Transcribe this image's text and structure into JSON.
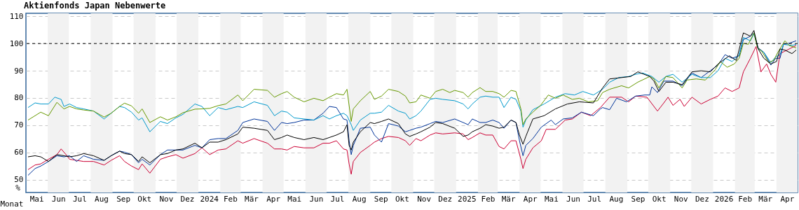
{
  "chart_data": {
    "type": "line",
    "title": "Aktienfonds Japan Nebenwerte",
    "xlabel": "Monat",
    "ylabel": "%",
    "xlim": [
      "2023-05-01",
      "2026-05-01"
    ],
    "ylim": [
      45.3,
      111.1
    ],
    "yticks": [
      50,
      60,
      70,
      80,
      90,
      100,
      110
    ],
    "xticks": [
      {
        "value": "2023-05-16",
        "label": "Mai"
      },
      {
        "value": "2023-06-16",
        "label": "Jun"
      },
      {
        "value": "2023-07-16",
        "label": "Jul"
      },
      {
        "value": "2023-08-16",
        "label": "Aug"
      },
      {
        "value": "2023-09-16",
        "label": "Sep"
      },
      {
        "value": "2023-10-16",
        "label": "Okt"
      },
      {
        "value": "2023-11-16",
        "label": "Nov"
      },
      {
        "value": "2023-12-16",
        "label": "Dez"
      },
      {
        "value": "2024-01-16",
        "label": "2024"
      },
      {
        "value": "2024-02-15",
        "label": "Feb"
      },
      {
        "value": "2024-03-16",
        "label": "Mär"
      },
      {
        "value": "2024-04-16",
        "label": "Apr"
      },
      {
        "value": "2024-05-16",
        "label": "Mai"
      },
      {
        "value": "2024-06-16",
        "label": "Jun"
      },
      {
        "value": "2024-07-16",
        "label": "Jul"
      },
      {
        "value": "2024-08-16",
        "label": "Aug"
      },
      {
        "value": "2024-09-16",
        "label": "Sep"
      },
      {
        "value": "2024-10-16",
        "label": "Okt"
      },
      {
        "value": "2024-11-16",
        "label": "Nov"
      },
      {
        "value": "2024-12-16",
        "label": "Dez"
      },
      {
        "value": "2025-01-16",
        "label": "2025"
      },
      {
        "value": "2025-02-15",
        "label": "Feb"
      },
      {
        "value": "2025-03-16",
        "label": "Mär"
      },
      {
        "value": "2025-04-16",
        "label": "Apr"
      },
      {
        "value": "2025-05-16",
        "label": "Mai"
      },
      {
        "value": "2025-06-16",
        "label": "Jun"
      },
      {
        "value": "2025-07-16",
        "label": "Jul"
      },
      {
        "value": "2025-08-16",
        "label": "Aug"
      },
      {
        "value": "2025-09-16",
        "label": "Sep"
      },
      {
        "value": "2025-10-16",
        "label": "Okt"
      },
      {
        "value": "2025-11-16",
        "label": "Nov"
      },
      {
        "value": "2025-12-16",
        "label": "Dez"
      },
      {
        "value": "2026-01-16",
        "label": "2026"
      },
      {
        "value": "2026-02-15",
        "label": "Feb"
      },
      {
        "value": "2026-03-16",
        "label": "Mär"
      },
      {
        "value": "2026-04-16",
        "label": "Apr"
      }
    ],
    "grid": "y",
    "ref_lines": [
      {
        "axis": "y",
        "value": 100,
        "color": "#000000",
        "line_style": "dashed"
      }
    ],
    "bands": [
      {
        "axis": "x",
        "from": "2023-06-01",
        "to": "2023-07-01",
        "color": "#f2f2f2"
      },
      {
        "axis": "x",
        "from": "2023-08-01",
        "to": "2023-09-01",
        "color": "#f2f2f2"
      },
      {
        "axis": "x",
        "from": "2023-10-01",
        "to": "2023-11-01",
        "color": "#f2f2f2"
      },
      {
        "axis": "x",
        "from": "2023-12-01",
        "to": "2024-01-01",
        "color": "#f2f2f2"
      },
      {
        "axis": "x",
        "from": "2024-02-01",
        "to": "2024-03-01",
        "color": "#f2f2f2"
      },
      {
        "axis": "x",
        "from": "2024-04-01",
        "to": "2024-05-01",
        "color": "#f2f2f2"
      },
      {
        "axis": "x",
        "from": "2024-06-01",
        "to": "2024-07-01",
        "color": "#f2f2f2"
      },
      {
        "axis": "x",
        "from": "2024-08-01",
        "to": "2024-09-01",
        "color": "#f2f2f2"
      },
      {
        "axis": "x",
        "from": "2024-10-01",
        "to": "2024-11-01",
        "color": "#f2f2f2"
      },
      {
        "axis": "x",
        "from": "2024-12-01",
        "to": "2025-01-01",
        "color": "#f2f2f2"
      },
      {
        "axis": "x",
        "from": "2025-02-01",
        "to": "2025-03-01",
        "color": "#f2f2f2"
      },
      {
        "axis": "x",
        "from": "2025-04-01",
        "to": "2025-05-01",
        "color": "#f2f2f2"
      },
      {
        "axis": "x",
        "from": "2025-06-01",
        "to": "2025-07-01",
        "color": "#f2f2f2"
      },
      {
        "axis": "x",
        "from": "2025-08-01",
        "to": "2025-09-01",
        "color": "#f2f2f2"
      },
      {
        "axis": "x",
        "from": "2025-10-01",
        "to": "2025-11-01",
        "color": "#f2f2f2"
      },
      {
        "axis": "x",
        "from": "2025-12-01",
        "to": "2026-01-01",
        "color": "#f2f2f2"
      },
      {
        "axis": "x",
        "from": "2026-02-01",
        "to": "2026-03-01",
        "color": "#f2f2f2"
      },
      {
        "axis": "x",
        "from": "2026-04-01",
        "to": "2026-05-01",
        "color": "#f2f2f2"
      }
    ],
    "series": [
      {
        "color": "#cc0033",
        "x": [
          "2023-05-04",
          "2023-05-14",
          "2023-05-22",
          "2023-06-02",
          "2023-06-14",
          "2023-06-20",
          "2023-06-27",
          "2023-07-02",
          "2023-07-12",
          "2023-07-22",
          "2023-08-05",
          "2023-08-20",
          "2023-08-30",
          "2023-09-11",
          "2023-09-18",
          "2023-09-28",
          "2023-10-08",
          "2023-10-13",
          "2023-10-24",
          "2023-11-08",
          "2023-11-18",
          "2023-11-30",
          "2023-12-10",
          "2023-12-27",
          "2024-01-06",
          "2024-01-17",
          "2024-01-29",
          "2024-02-09",
          "2024-02-26",
          "2024-03-04",
          "2024-03-20",
          "2024-04-08",
          "2024-04-18",
          "2024-04-28",
          "2024-05-06",
          "2024-05-16",
          "2024-05-30",
          "2024-06-13",
          "2024-06-26",
          "2024-07-05",
          "2024-07-15",
          "2024-07-25",
          "2024-07-30",
          "2024-08-02",
          "2024-08-05",
          "2024-08-08",
          "2024-08-18",
          "2024-09-01",
          "2024-09-07",
          "2024-09-17",
          "2024-09-27",
          "2024-10-11",
          "2024-10-21",
          "2024-10-27",
          "2024-11-05",
          "2024-11-12",
          "2024-11-25",
          "2024-12-03",
          "2024-12-13",
          "2024-12-30",
          "2025-01-11",
          "2025-01-18",
          "2025-01-24",
          "2025-02-04",
          "2025-02-12",
          "2025-02-22",
          "2025-03-03",
          "2025-03-10",
          "2025-03-20",
          "2025-03-27",
          "2025-04-03",
          "2025-04-06",
          "2025-04-10",
          "2025-04-20",
          "2025-05-02",
          "2025-05-09",
          "2025-05-22",
          "2025-06-05",
          "2025-06-15",
          "2025-06-28",
          "2025-07-11",
          "2025-07-25",
          "2025-08-07",
          "2025-08-24",
          "2025-09-03",
          "2025-09-13",
          "2025-09-29",
          "2025-10-14",
          "2025-10-23",
          "2025-10-29",
          "2025-11-05",
          "2025-11-15",
          "2025-11-21",
          "2025-12-02",
          "2025-12-15",
          "2025-12-28",
          "2026-01-08",
          "2026-01-18",
          "2026-01-28",
          "2026-02-07",
          "2026-02-13",
          "2026-02-23",
          "2026-03-03",
          "2026-03-10",
          "2026-03-18",
          "2026-03-24",
          "2026-03-31",
          "2026-04-06",
          "2026-04-16",
          "2026-04-29"
        ],
        "values": [
          53.7,
          55.4,
          55.8,
          57.5,
          59.2,
          61.3,
          59.2,
          57.5,
          57.1,
          56.7,
          56.7,
          55.4,
          57.1,
          58.8,
          56.7,
          55,
          53.7,
          55.8,
          52.4,
          57.5,
          58.4,
          59.2,
          57.9,
          59.6,
          61.7,
          59.2,
          60.9,
          61.3,
          64.3,
          63.4,
          65.1,
          63.4,
          61.3,
          61.3,
          60.9,
          62.2,
          61.7,
          61.7,
          63.4,
          63.4,
          64.3,
          61.3,
          60.9,
          55.8,
          52,
          56.7,
          60,
          62.6,
          63.8,
          65.1,
          65.9,
          65.5,
          64.3,
          62.6,
          65.1,
          64.3,
          66.4,
          67.2,
          66.8,
          67.2,
          66.8,
          64.7,
          65.5,
          67.2,
          66.4,
          66.4,
          62.2,
          61.3,
          64.3,
          64.3,
          57.5,
          54.1,
          57.5,
          61.7,
          64.3,
          68.5,
          68.5,
          71.9,
          72.3,
          74.8,
          73.5,
          76.5,
          80.3,
          80.3,
          78.6,
          80.7,
          80.3,
          75.2,
          78.2,
          80.3,
          77.3,
          79.5,
          76.9,
          80.3,
          77.8,
          79.5,
          80.7,
          83.7,
          82.4,
          83.7,
          89.6,
          94.6,
          98.9,
          89.6,
          92.5,
          88.7,
          85.8,
          96.3,
          97.6,
          99.3
        ]
      },
      {
        "color": "#003399",
        "x": [
          "2023-05-04",
          "2023-05-14",
          "2023-05-22",
          "2023-06-02",
          "2023-06-14",
          "2023-06-24",
          "2023-07-02",
          "2023-07-12",
          "2023-07-22",
          "2023-08-05",
          "2023-08-20",
          "2023-08-30",
          "2023-09-11",
          "2023-09-18",
          "2023-09-28",
          "2023-10-08",
          "2023-10-13",
          "2023-10-24",
          "2023-11-08",
          "2023-11-18",
          "2023-11-30",
          "2023-12-10",
          "2023-12-27",
          "2024-01-06",
          "2024-01-17",
          "2024-01-29",
          "2024-02-09",
          "2024-02-26",
          "2024-03-04",
          "2024-03-20",
          "2024-04-08",
          "2024-04-18",
          "2024-04-28",
          "2024-05-06",
          "2024-05-16",
          "2024-05-30",
          "2024-06-13",
          "2024-06-26",
          "2024-07-05",
          "2024-07-15",
          "2024-07-25",
          "2024-07-30",
          "2024-08-02",
          "2024-08-05",
          "2024-08-08",
          "2024-08-18",
          "2024-09-01",
          "2024-09-07",
          "2024-09-17",
          "2024-09-27",
          "2024-10-11",
          "2024-10-21",
          "2024-10-27",
          "2024-11-05",
          "2024-11-12",
          "2024-11-25",
          "2024-12-03",
          "2024-12-13",
          "2024-12-30",
          "2025-01-11",
          "2025-01-18",
          "2025-01-24",
          "2025-02-04",
          "2025-02-12",
          "2025-02-22",
          "2025-03-03",
          "2025-03-10",
          "2025-03-20",
          "2025-03-27",
          "2025-04-01",
          "2025-04-06",
          "2025-04-10",
          "2025-04-20",
          "2025-05-02",
          "2025-05-16",
          "2025-05-22",
          "2025-06-02",
          "2025-06-15",
          "2025-06-28",
          "2025-07-15",
          "2025-07-25",
          "2025-07-28",
          "2025-08-07",
          "2025-08-17",
          "2025-08-31",
          "2025-09-13",
          "2025-09-26",
          "2025-10-03",
          "2025-10-06",
          "2025-10-14",
          "2025-10-23",
          "2025-11-05",
          "2025-11-18",
          "2025-12-02",
          "2025-12-15",
          "2025-12-28",
          "2026-01-08",
          "2026-01-18",
          "2026-01-28",
          "2026-02-07",
          "2026-02-13",
          "2026-02-23",
          "2026-02-28",
          "2026-03-06",
          "2026-03-14",
          "2026-03-24",
          "2026-03-31",
          "2026-04-06",
          "2026-04-11",
          "2026-04-19",
          "2026-04-29"
        ],
        "values": [
          51.6,
          54.1,
          55,
          56.7,
          58.8,
          58.4,
          58.8,
          56.7,
          58.8,
          57.5,
          57.1,
          58.8,
          60.5,
          60.1,
          59.2,
          56.2,
          57.5,
          55.4,
          59.2,
          60.9,
          60.9,
          60.9,
          62.6,
          61.7,
          64.7,
          65.1,
          65.1,
          68.1,
          71,
          72.3,
          71.4,
          68.1,
          71,
          70.6,
          71,
          71.9,
          71.9,
          74.4,
          76.9,
          76.5,
          72.3,
          71.9,
          64.3,
          59.2,
          62.6,
          68.9,
          69.3,
          66.4,
          63.8,
          70.6,
          69.7,
          67.6,
          68.1,
          68.9,
          69.3,
          70.6,
          71.4,
          71,
          72.3,
          71,
          70.2,
          72.3,
          71,
          71,
          71.9,
          71,
          68.9,
          71.9,
          71,
          64.3,
          58.8,
          62.6,
          65.1,
          69.3,
          71.9,
          70.2,
          72.3,
          72.7,
          74.8,
          73.5,
          76,
          76.5,
          75.7,
          79.9,
          78.6,
          80.7,
          81.1,
          81.1,
          84.1,
          82,
          86.2,
          86.2,
          84.5,
          89.2,
          87.5,
          90,
          92.1,
          95.9,
          94.6,
          95.5,
          101.4,
          102.7,
          103.9,
          98.4,
          96.8,
          92.1,
          94.6,
          94.6,
          99.7,
          100.1,
          101
        ]
      },
      {
        "color": "#0099cc",
        "x": [
          "2023-05-04",
          "2023-05-14",
          "2023-05-22",
          "2023-06-02",
          "2023-06-11",
          "2023-06-20",
          "2023-06-24",
          "2023-07-02",
          "2023-07-12",
          "2023-07-22",
          "2023-08-05",
          "2023-08-20",
          "2023-08-30",
          "2023-09-11",
          "2023-09-18",
          "2023-09-28",
          "2023-10-08",
          "2023-10-13",
          "2023-10-24",
          "2023-11-08",
          "2023-11-18",
          "2023-11-30",
          "2023-12-10",
          "2023-12-27",
          "2024-01-06",
          "2024-01-17",
          "2024-01-29",
          "2024-02-09",
          "2024-02-26",
          "2024-03-04",
          "2024-03-20",
          "2024-04-08",
          "2024-04-18",
          "2024-04-28",
          "2024-05-06",
          "2024-05-16",
          "2024-05-30",
          "2024-06-13",
          "2024-06-26",
          "2024-07-05",
          "2024-07-15",
          "2024-07-25",
          "2024-07-30",
          "2024-08-05",
          "2024-08-08",
          "2024-08-18",
          "2024-09-01",
          "2024-09-07",
          "2024-09-17",
          "2024-09-27",
          "2024-10-11",
          "2024-10-21",
          "2024-10-27",
          "2024-11-05",
          "2024-11-12",
          "2024-11-25",
          "2024-12-03",
          "2024-12-13",
          "2024-12-30",
          "2025-01-11",
          "2025-01-18",
          "2025-01-24",
          "2025-02-04",
          "2025-02-12",
          "2025-02-22",
          "2025-03-03",
          "2025-03-10",
          "2025-03-20",
          "2025-03-27",
          "2025-04-03",
          "2025-04-06",
          "2025-04-10",
          "2025-04-20",
          "2025-05-06",
          "2025-05-22",
          "2025-06-05",
          "2025-06-18",
          "2025-06-30",
          "2025-07-15",
          "2025-07-28",
          "2025-08-07",
          "2025-08-20",
          "2025-09-03",
          "2025-09-13",
          "2025-09-23",
          "2025-10-06",
          "2025-10-16",
          "2025-10-26",
          "2025-11-05",
          "2025-11-18",
          "2025-12-02",
          "2025-12-15",
          "2025-12-28",
          "2026-01-08",
          "2026-01-18",
          "2026-01-28",
          "2026-02-07",
          "2026-02-13",
          "2026-02-23",
          "2026-02-28",
          "2026-03-06",
          "2026-03-14",
          "2026-03-24",
          "2026-03-31",
          "2026-04-06",
          "2026-04-11",
          "2026-04-23",
          "2026-04-29"
        ],
        "values": [
          76.5,
          78.2,
          77.8,
          77.8,
          80.3,
          79.5,
          76.9,
          77.8,
          76.5,
          76,
          75.2,
          72.3,
          74.4,
          76.9,
          76.5,
          74.8,
          71.9,
          72.7,
          67.6,
          71.4,
          70.6,
          72.7,
          74,
          77.8,
          76.9,
          73.5,
          76.5,
          75.7,
          76.9,
          76.5,
          78.6,
          77.3,
          73.5,
          75.2,
          74.8,
          72.7,
          72.3,
          71.9,
          73.5,
          72.3,
          73.5,
          74.4,
          73.5,
          70.2,
          68.1,
          71.9,
          74.4,
          74.4,
          74.8,
          77.3,
          75.2,
          74.4,
          72.3,
          73.5,
          75.2,
          79.5,
          79.9,
          79.5,
          79,
          77.8,
          76,
          77.8,
          80.3,
          80.7,
          80.3,
          80.3,
          76.5,
          80.3,
          79.5,
          75.2,
          69.3,
          71.9,
          75.7,
          77.8,
          80.3,
          81.6,
          81.1,
          82.4,
          81.1,
          83.2,
          85.8,
          87.5,
          87.9,
          88.7,
          89.2,
          87.9,
          85.8,
          87.9,
          88.7,
          85.8,
          88.7,
          87.5,
          87.5,
          90,
          94.6,
          93.4,
          95.9,
          102.2,
          101,
          103.5,
          98,
          96.8,
          93,
          95.1,
          95.9,
          99.7,
          99.3,
          99.7
        ]
      },
      {
        "color": "#669900",
        "x": [
          "2023-05-04",
          "2023-05-14",
          "2023-05-22",
          "2023-06-02",
          "2023-06-14",
          "2023-06-24",
          "2023-07-02",
          "2023-07-12",
          "2023-07-22",
          "2023-08-05",
          "2023-08-20",
          "2023-08-30",
          "2023-09-11",
          "2023-09-18",
          "2023-09-28",
          "2023-10-08",
          "2023-10-13",
          "2023-10-24",
          "2023-11-08",
          "2023-11-18",
          "2023-11-30",
          "2023-12-10",
          "2023-12-27",
          "2024-01-06",
          "2024-01-17",
          "2024-01-29",
          "2024-02-09",
          "2024-02-26",
          "2024-03-04",
          "2024-03-20",
          "2024-04-08",
          "2024-04-18",
          "2024-04-28",
          "2024-05-06",
          "2024-05-16",
          "2024-05-30",
          "2024-06-13",
          "2024-06-26",
          "2024-07-05",
          "2024-07-15",
          "2024-07-25",
          "2024-07-30",
          "2024-08-05",
          "2024-08-08",
          "2024-08-18",
          "2024-09-01",
          "2024-09-07",
          "2024-09-17",
          "2024-09-27",
          "2024-10-11",
          "2024-10-21",
          "2024-10-27",
          "2024-11-05",
          "2024-11-12",
          "2024-11-25",
          "2024-12-03",
          "2024-12-13",
          "2024-12-23",
          "2024-12-30",
          "2025-01-11",
          "2025-01-18",
          "2025-01-24",
          "2025-02-04",
          "2025-02-12",
          "2025-02-22",
          "2025-03-03",
          "2025-03-10",
          "2025-03-20",
          "2025-03-27",
          "2025-04-03",
          "2025-04-06",
          "2025-04-10",
          "2025-04-20",
          "2025-05-01",
          "2025-05-12",
          "2025-05-22",
          "2025-06-02",
          "2025-06-15",
          "2025-06-25",
          "2025-07-08",
          "2025-07-21",
          "2025-07-28",
          "2025-08-07",
          "2025-08-24",
          "2025-09-03",
          "2025-09-16",
          "2025-10-03",
          "2025-10-09",
          "2025-10-16",
          "2025-10-26",
          "2025-11-05",
          "2025-11-18",
          "2025-11-25",
          "2025-12-08",
          "2025-12-21",
          "2026-01-04",
          "2026-01-11",
          "2026-01-21",
          "2026-01-31",
          "2026-02-07",
          "2026-02-13",
          "2026-02-20",
          "2026-02-28",
          "2026-03-05",
          "2026-03-11",
          "2026-03-21",
          "2026-03-28",
          "2026-04-03",
          "2026-04-09",
          "2026-04-13",
          "2026-04-19",
          "2026-04-29"
        ],
        "values": [
          71.9,
          73.5,
          74.8,
          73.5,
          78.4,
          76,
          76.9,
          76,
          75.6,
          75.2,
          73,
          74.4,
          76.9,
          78.1,
          77.1,
          74.4,
          76,
          71,
          73.1,
          71.9,
          73.1,
          74.6,
          75.9,
          76,
          76.2,
          77.2,
          77.8,
          81.1,
          79,
          83.2,
          82.8,
          80.3,
          81.6,
          82.4,
          80.3,
          78.6,
          79.9,
          79,
          80.3,
          81.6,
          81.1,
          83.2,
          71.4,
          76,
          79,
          82.4,
          79.5,
          80.7,
          83.2,
          82.4,
          80.7,
          78.2,
          78.6,
          81.1,
          79.9,
          82.4,
          83.2,
          82,
          82.8,
          82,
          80.3,
          82,
          83.8,
          82.4,
          82.4,
          81.6,
          80.3,
          82.8,
          82.4,
          76,
          70.2,
          72.3,
          74.8,
          77.3,
          81.1,
          79.9,
          81.1,
          79.5,
          79.9,
          78.6,
          79,
          82,
          83.2,
          84.5,
          83.7,
          85.8,
          87.9,
          87,
          83.7,
          87.9,
          87.5,
          83.7,
          86.6,
          87,
          86.6,
          90.4,
          93.4,
          91.3,
          92.5,
          94.6,
          100.1,
          99.7,
          103.9,
          98.4,
          97.2,
          93,
          93.8,
          96.8,
          99.3,
          101,
          99.3,
          98.4
        ]
      },
      {
        "color": "#000000",
        "x": [
          "2023-05-04",
          "2023-05-14",
          "2023-05-22",
          "2023-06-02",
          "2023-06-14",
          "2023-06-24",
          "2023-07-02",
          "2023-07-12",
          "2023-07-22",
          "2023-08-05",
          "2023-08-20",
          "2023-08-30",
          "2023-09-11",
          "2023-09-18",
          "2023-09-28",
          "2023-10-08",
          "2023-10-13",
          "2023-10-24",
          "2023-11-08",
          "2023-11-18",
          "2023-11-30",
          "2023-12-10",
          "2023-12-27",
          "2024-01-06",
          "2024-01-17",
          "2024-01-29",
          "2024-02-09",
          "2024-02-26",
          "2024-03-04",
          "2024-03-20",
          "2024-04-08",
          "2024-04-18",
          "2024-04-28",
          "2024-05-06",
          "2024-05-16",
          "2024-05-30",
          "2024-06-13",
          "2024-06-26",
          "2024-07-05",
          "2024-07-15",
          "2024-07-25",
          "2024-07-30",
          "2024-08-02",
          "2024-08-05",
          "2024-08-08",
          "2024-08-18",
          "2024-09-01",
          "2024-09-07",
          "2024-09-17",
          "2024-09-27",
          "2024-10-11",
          "2024-10-21",
          "2024-10-27",
          "2024-11-05",
          "2024-11-12",
          "2024-11-25",
          "2024-12-03",
          "2024-12-13",
          "2024-12-30",
          "2025-01-11",
          "2025-01-18",
          "2025-01-24",
          "2025-02-04",
          "2025-02-12",
          "2025-02-22",
          "2025-03-03",
          "2025-03-10",
          "2025-03-20",
          "2025-03-27",
          "2025-04-01",
          "2025-04-06",
          "2025-04-10",
          "2025-04-20",
          "2025-05-06",
          "2025-05-22",
          "2025-06-08",
          "2025-06-25",
          "2025-07-15",
          "2025-07-28",
          "2025-08-07",
          "2025-08-24",
          "2025-09-06",
          "2025-09-16",
          "2025-10-03",
          "2025-10-09",
          "2025-10-16",
          "2025-10-26",
          "2025-11-05",
          "2025-11-18",
          "2025-12-02",
          "2025-12-15",
          "2025-12-28",
          "2026-01-08",
          "2026-01-24",
          "2026-02-03",
          "2026-02-13",
          "2026-02-23",
          "2026-02-28",
          "2026-03-06",
          "2026-03-14",
          "2026-03-24",
          "2026-04-01",
          "2026-04-06",
          "2026-04-13",
          "2026-04-23",
          "2026-04-29"
        ],
        "values": [
          58.4,
          58.8,
          58.4,
          56.7,
          59.2,
          58.8,
          58.4,
          58.8,
          59.6,
          58.8,
          57.1,
          58.8,
          60.5,
          59.6,
          59.2,
          56.7,
          58.4,
          56.2,
          59.2,
          59.6,
          60.9,
          61.3,
          63.4,
          61.7,
          63.8,
          63.8,
          64.7,
          66.8,
          69.3,
          68.9,
          68.1,
          64.7,
          65.5,
          66.4,
          65.5,
          64.7,
          65.5,
          64.7,
          65.5,
          66.4,
          67.6,
          70.2,
          62.6,
          60.9,
          63.8,
          67.6,
          71,
          70.6,
          71.4,
          72.3,
          70.6,
          66.8,
          65.9,
          66.8,
          67.6,
          69.3,
          71,
          70.6,
          68.9,
          65.9,
          66.4,
          67.6,
          68.9,
          70.2,
          69.7,
          68.9,
          69.3,
          71.9,
          71,
          66.4,
          63,
          65.9,
          72.3,
          73.5,
          76,
          77.8,
          78.6,
          78.2,
          83.7,
          87,
          87.5,
          87.9,
          89.6,
          87.9,
          86.2,
          82.4,
          85.8,
          85.8,
          84.9,
          89.6,
          90,
          89.6,
          92.5,
          95.5,
          93.8,
          103.9,
          102.7,
          104.8,
          98,
          94.6,
          92.5,
          93.4,
          98,
          97.6,
          96.3,
          97.6
        ]
      }
    ]
  }
}
